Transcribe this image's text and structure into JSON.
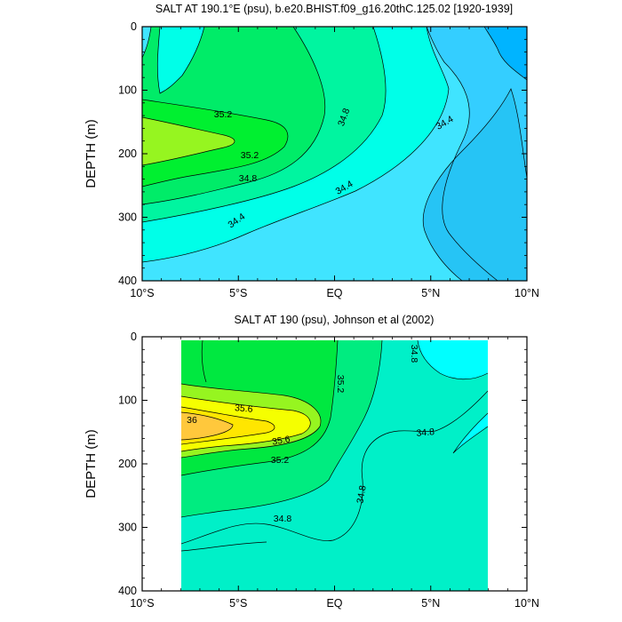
{
  "chart_data": [
    {
      "type": "contour",
      "title": "SALT AT 190.1°E (psu), b.e20.BHIST.f09_g16.20thC.125.02 [1920-1939]",
      "ylabel": "DEPTH (m)",
      "x_ticks": [
        {
          "value": -10,
          "label": "10°S"
        },
        {
          "value": -5,
          "label": "5°S"
        },
        {
          "value": 0,
          "label": "EQ"
        },
        {
          "value": 5,
          "label": "5°N"
        },
        {
          "value": 10,
          "label": "10°N"
        }
      ],
      "y_ticks": [
        0,
        100,
        200,
        300,
        400
      ],
      "xlim": [
        -10,
        10
      ],
      "ylim": [
        400,
        0
      ],
      "levels_psu": [
        34.0,
        34.2,
        34.4,
        34.6,
        34.8,
        35.0,
        35.2,
        35.4
      ],
      "contour_labels": [
        "35.2",
        "35.2",
        "34.8",
        "34.8",
        "34.4",
        "34.4",
        "34.4"
      ],
      "colors": {
        "34.0": "#00b4ff",
        "34.2": "#34ceff",
        "34.4": "#40e4ff",
        "34.6": "#00ffe8",
        "34.8": "#00f5a0",
        "35.0": "#00ec68",
        "35.2": "#00f030",
        "35.4": "#96f520"
      }
    },
    {
      "type": "contour",
      "title": "SALT AT 190 (psu), Johnson et al (2002)",
      "ylabel": "DEPTH (m)",
      "x_ticks": [
        {
          "value": -10,
          "label": "10°S"
        },
        {
          "value": -5,
          "label": "5°S"
        },
        {
          "value": 0,
          "label": "EQ"
        },
        {
          "value": 5,
          "label": "5°N"
        },
        {
          "value": 10,
          "label": "10°N"
        }
      ],
      "y_ticks": [
        0,
        100,
        200,
        300,
        400
      ],
      "xlim": [
        -10,
        10
      ],
      "ylim": [
        400,
        0
      ],
      "data_extent_x": [
        -8,
        8
      ],
      "data_extent_y": [
        5,
        400
      ],
      "levels_psu": [
        34.6,
        34.8,
        35.0,
        35.2,
        35.4,
        35.6,
        35.8,
        36.0
      ],
      "contour_labels": [
        "35.6",
        "36",
        "35.6",
        "35.2",
        "35.2",
        "34.8",
        "34.8",
        "34.8",
        "34.8"
      ],
      "colors": {
        "34.6": "#00ffff",
        "34.8": "#00f0c8",
        "35.0": "#00ec80",
        "35.2": "#00e840",
        "35.4": "#96f520",
        "35.6": "#f5ff00",
        "35.8": "#ffe600",
        "36.0": "#ffc83c"
      }
    }
  ]
}
